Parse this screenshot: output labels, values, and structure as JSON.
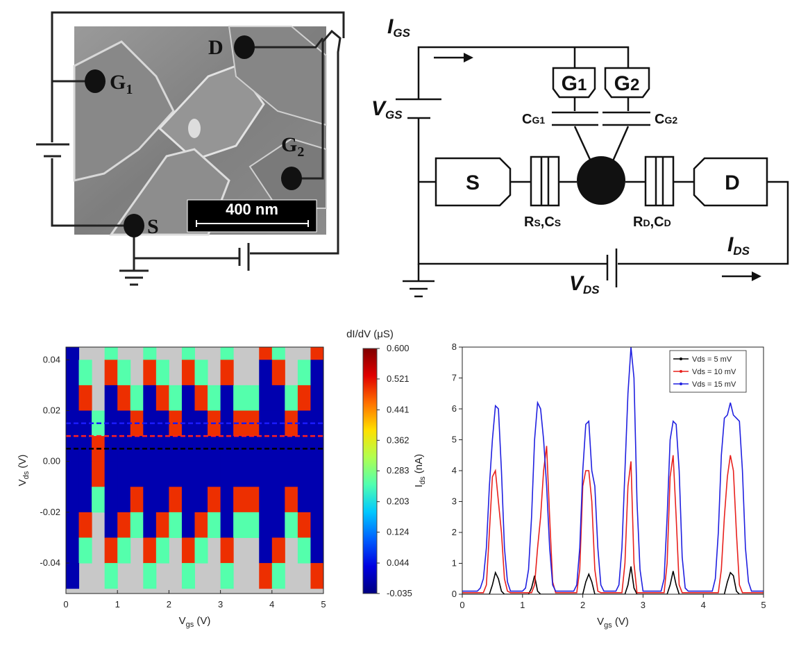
{
  "sem_image": {
    "labels": {
      "drain": "D",
      "gate1": [
        "G",
        "1"
      ],
      "gate2": [
        "G",
        "2"
      ],
      "source": "S"
    },
    "scale_bar": "400 nm"
  },
  "circuit": {
    "current_gs": [
      "I",
      "GS"
    ],
    "voltage_gs": [
      "V",
      "GS"
    ],
    "gate1": [
      "G",
      "1"
    ],
    "gate2": [
      "G",
      "2"
    ],
    "cap_g1": [
      "C",
      "G1"
    ],
    "cap_g2": [
      "C",
      "G2"
    ],
    "source": "S",
    "drain": "D",
    "junction_s": [
      "R",
      "S",
      ",C",
      "S"
    ],
    "junction_d": [
      "R",
      "D",
      ",C",
      "D"
    ],
    "current_ds": [
      "I",
      "DS"
    ],
    "voltage_ds": [
      "V",
      "DS"
    ]
  },
  "chart_data": [
    {
      "type": "heatmap",
      "xlabel": [
        "V",
        "gs",
        " (V)"
      ],
      "ylabel": [
        "V",
        "ds",
        " (V)"
      ],
      "colorbar_label": "dI/dV (μS)",
      "x": [
        0.125,
        0.375,
        0.625,
        0.875,
        1.125,
        1.375,
        1.625,
        1.875,
        2.125,
        2.375,
        2.625,
        2.875,
        3.125,
        3.375,
        3.625,
        3.875,
        4.125,
        4.375,
        4.625,
        4.875
      ],
      "y": [
        0.045,
        0.035,
        0.025,
        0.015,
        0.005,
        -0.005,
        -0.015,
        -0.025,
        -0.035,
        -0.045
      ],
      "z": [
        [
          0,
          null,
          null,
          0.25,
          null,
          null,
          0.25,
          null,
          null,
          0.25,
          null,
          null,
          0.25,
          null,
          null,
          0.5,
          0.25,
          null,
          null,
          0.5
        ],
        [
          0,
          0.25,
          null,
          0.5,
          0.25,
          null,
          0.5,
          0.25,
          null,
          0.5,
          0.25,
          null,
          0.5,
          null,
          null,
          0,
          0.5,
          null,
          0.25,
          0
        ],
        [
          0,
          0.5,
          null,
          0,
          0.5,
          0.25,
          0,
          0.5,
          0.25,
          0,
          0.5,
          0.25,
          0,
          0.25,
          0.25,
          0,
          0,
          0.25,
          0.5,
          0
        ],
        [
          0,
          0,
          0.25,
          0,
          0,
          0.5,
          0,
          0,
          0.5,
          0,
          0,
          0.5,
          0,
          0.5,
          0.5,
          0,
          0,
          0.5,
          0,
          0
        ],
        [
          0,
          0,
          0.5,
          0,
          0,
          0,
          0,
          0,
          0,
          0,
          0,
          0,
          0,
          0,
          0,
          0,
          0,
          0,
          0,
          0
        ],
        [
          0,
          0,
          0.5,
          0,
          0,
          0,
          0,
          0,
          0,
          0,
          0,
          0,
          0,
          0,
          0,
          0,
          0,
          0,
          0,
          0
        ],
        [
          0,
          0,
          0.25,
          0,
          0,
          0.5,
          0,
          0,
          0.5,
          0,
          0,
          0.5,
          0,
          0.5,
          0.5,
          0,
          0,
          0.5,
          0,
          0
        ],
        [
          0,
          0.5,
          null,
          0,
          0.5,
          0.25,
          0,
          0.5,
          0.25,
          0,
          0.5,
          0.25,
          0,
          0.25,
          0.25,
          0,
          0,
          0.25,
          0.5,
          0
        ],
        [
          0,
          0.25,
          null,
          0.5,
          0.25,
          null,
          0.5,
          0.25,
          null,
          0.5,
          0.25,
          null,
          0.5,
          null,
          null,
          0,
          0.5,
          null,
          0.25,
          0
        ],
        [
          0,
          null,
          null,
          0.25,
          null,
          null,
          0.25,
          null,
          null,
          0.25,
          null,
          null,
          0.25,
          null,
          null,
          0.5,
          0.25,
          null,
          null,
          0.5
        ]
      ],
      "xlim": [
        0,
        5
      ],
      "xticks": [
        0,
        1,
        2,
        3,
        4,
        5
      ],
      "ylim": [
        -0.052,
        0.045
      ],
      "yticks": [
        -0.04,
        -0.02,
        {
          "value": 0,
          "label": "0.00"
        },
        0.02,
        0.04
      ],
      "zlim": [
        -0.035,
        0.6
      ],
      "zticks": [
        -0.035,
        0.044,
        0.124,
        0.203,
        0.283,
        0.362,
        0.441,
        0.521,
        {
          "value": 0.6,
          "label": "0.600"
        }
      ],
      "colormap": [
        "#00007f",
        "#0000e0",
        "#0060ff",
        "#00c8ff",
        "#50ffb0",
        "#b0ff50",
        "#ffe000",
        "#ff7000",
        "#e00000",
        "#7f0000"
      ],
      "background": "#c8c8c8",
      "reference_lines": [
        {
          "value": 0.015,
          "color": "#1a1aff"
        },
        {
          "value": 0.01,
          "color": "#ff2020"
        },
        {
          "value": 0.005,
          "color": "#000000"
        }
      ]
    },
    {
      "type": "line",
      "xlabel": [
        "V",
        "gs",
        " (V)"
      ],
      "ylabel": [
        "I",
        "ds",
        " (nA)"
      ],
      "x": [
        0,
        0.05,
        0.1,
        0.15,
        0.2,
        0.25,
        0.3,
        0.35,
        0.4,
        0.45,
        0.5,
        0.55,
        0.6,
        0.65,
        0.7,
        0.75,
        0.8,
        0.85,
        0.9,
        0.95,
        1,
        1.05,
        1.1,
        1.15,
        1.2,
        1.25,
        1.3,
        1.35,
        1.4,
        1.45,
        1.5,
        1.55,
        1.6,
        1.65,
        1.7,
        1.75,
        1.8,
        1.85,
        1.9,
        1.95,
        2,
        2.05,
        2.1,
        2.15,
        2.2,
        2.25,
        2.3,
        2.35,
        2.4,
        2.45,
        2.5,
        2.55,
        2.6,
        2.65,
        2.7,
        2.75,
        2.8,
        2.85,
        2.9,
        2.95,
        3,
        3.05,
        3.1,
        3.15,
        3.2,
        3.25,
        3.3,
        3.35,
        3.4,
        3.45,
        3.5,
        3.55,
        3.6,
        3.65,
        3.7,
        3.75,
        3.8,
        3.85,
        3.9,
        3.95,
        4,
        4.05,
        4.1,
        4.15,
        4.2,
        4.25,
        4.3,
        4.35,
        4.4,
        4.45,
        4.5,
        4.55,
        4.6,
        4.65,
        4.7,
        4.75,
        4.8,
        4.85,
        4.9,
        4.95,
        5
      ],
      "series": [
        {
          "name": "Vds = 5 mV",
          "color": "#000000",
          "values": [
            0,
            0,
            0,
            0,
            0,
            0,
            0,
            0,
            0,
            0,
            0.3,
            0.7,
            0.5,
            0.1,
            0,
            0,
            0,
            0,
            0,
            0,
            0,
            0,
            0,
            0.2,
            0.6,
            0.1,
            0,
            0,
            0,
            0,
            0,
            0,
            0,
            0,
            0,
            0,
            0,
            0,
            0,
            0,
            0,
            0.4,
            0.65,
            0.4,
            0,
            0,
            0,
            0,
            0,
            0,
            0,
            0,
            0,
            0,
            0,
            0.3,
            0.9,
            0.2,
            0,
            0,
            0,
            0,
            0,
            0,
            0,
            0,
            0,
            0,
            0,
            0.3,
            0.75,
            0.3,
            0,
            0,
            0,
            0,
            0,
            0,
            0,
            0,
            0,
            0,
            0,
            0,
            0,
            0,
            0,
            0,
            0.4,
            0.7,
            0.6,
            0.1,
            0,
            0,
            0,
            0,
            0,
            0,
            0,
            0,
            0
          ]
        },
        {
          "name": "Vds = 10 mV",
          "color": "#e8201c",
          "values": [
            0.05,
            0.05,
            0.05,
            0.05,
            0.05,
            0.05,
            0.05,
            0.05,
            0.3,
            2.0,
            3.8,
            4.0,
            3.0,
            2.0,
            0.5,
            0.1,
            0.05,
            0.05,
            0.05,
            0.05,
            0.05,
            0.05,
            0.05,
            0.05,
            0.3,
            1.5,
            2.5,
            4.0,
            4.8,
            2.5,
            0.4,
            0.05,
            0.05,
            0.05,
            0.05,
            0.05,
            0.05,
            0.05,
            0.05,
            0.8,
            3.5,
            4.0,
            4.0,
            3.0,
            0.8,
            0.1,
            0.05,
            0.05,
            0.05,
            0.05,
            0.05,
            0.05,
            0.05,
            0.05,
            1.0,
            3.5,
            4.3,
            1.0,
            0.05,
            0.05,
            0.05,
            0.05,
            0.05,
            0.05,
            0.05,
            0.05,
            0.05,
            0.05,
            1.0,
            3.8,
            4.5,
            2.5,
            0.3,
            0.05,
            0.05,
            0.05,
            0.05,
            0.05,
            0.05,
            0.05,
            0.05,
            0.05,
            0.05,
            0.05,
            0.05,
            0.05,
            0.8,
            2.5,
            3.8,
            4.5,
            4.0,
            2.0,
            0.3,
            0.05,
            0.05,
            0.05,
            0.05,
            0.05,
            0.05,
            0.05,
            0.05
          ]
        },
        {
          "name": "Vds = 15 mV",
          "color": "#1f1fe0",
          "values": [
            0.1,
            0.1,
            0.1,
            0.1,
            0.1,
            0.1,
            0.2,
            0.5,
            1.5,
            3.5,
            5.0,
            6.1,
            6.0,
            4.0,
            1.5,
            0.4,
            0.1,
            0.1,
            0.1,
            0.1,
            0.1,
            0.2,
            0.8,
            2.5,
            5.0,
            6.2,
            6.0,
            5.0,
            3.5,
            1.5,
            0.3,
            0.1,
            0.1,
            0.1,
            0.1,
            0.1,
            0.1,
            0.1,
            0.3,
            1.5,
            4.0,
            5.5,
            5.6,
            4.0,
            3.5,
            1.5,
            0.3,
            0.1,
            0.1,
            0.1,
            0.1,
            0.1,
            0.3,
            1.5,
            4.0,
            6.5,
            8.0,
            7.0,
            3.0,
            0.8,
            0.1,
            0.1,
            0.1,
            0.1,
            0.1,
            0.1,
            0.1,
            0.5,
            2.5,
            5.0,
            5.6,
            5.5,
            4.0,
            1.2,
            0.2,
            0.1,
            0.1,
            0.1,
            0.1,
            0.1,
            0.1,
            0.1,
            0.1,
            0.1,
            0.5,
            2.0,
            4.5,
            5.7,
            5.8,
            6.2,
            5.8,
            5.7,
            5.6,
            4.0,
            1.5,
            0.4,
            0.1,
            0.1,
            0.1,
            0.1,
            0.1
          ]
        }
      ],
      "xlim": [
        0,
        5
      ],
      "xticks": [
        0,
        1,
        2,
        3,
        4,
        5
      ],
      "ylim": [
        0,
        8
      ],
      "yticks": [
        0,
        1,
        2,
        3,
        4,
        5,
        6,
        7,
        8
      ],
      "legend": "upper right"
    }
  ]
}
